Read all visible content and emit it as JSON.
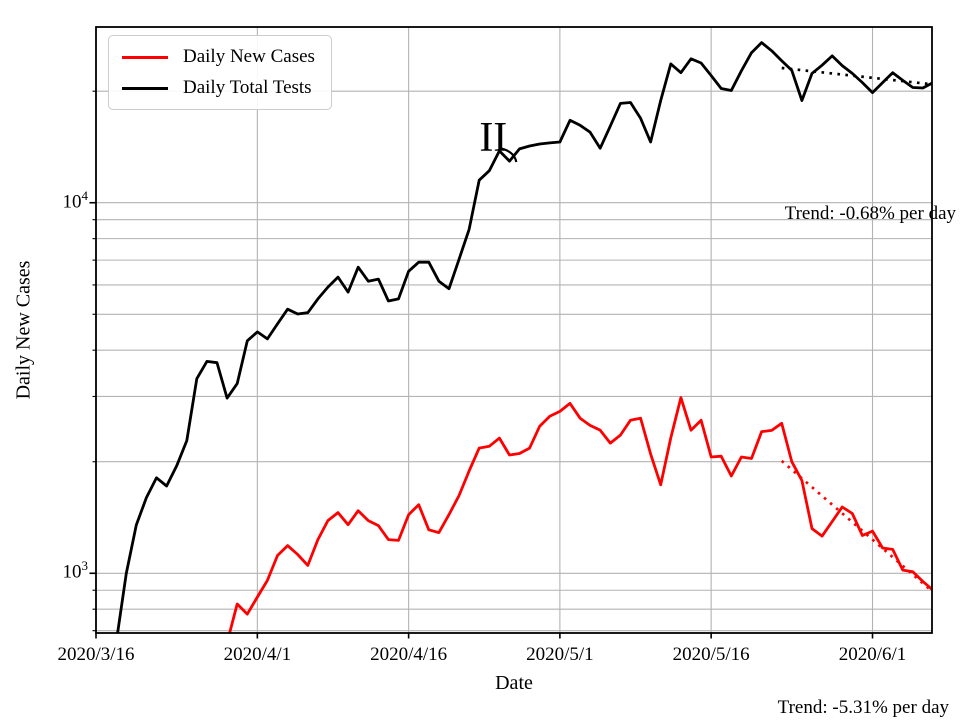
{
  "figure": {
    "background": "#ffffff",
    "grid_color": "#b3b3b3",
    "spine_color": "#000000"
  },
  "chart_data": {
    "type": "line",
    "title": "",
    "xlabel": "Date",
    "ylabel": "Daily New Cases",
    "y_scale": "log",
    "ylim": [
      690,
      29800
    ],
    "xlim_days": [
      0,
      82.9
    ],
    "grid": true,
    "legend_position": "upper left",
    "x_ticks": [
      {
        "label": "2020/3/16",
        "day": 0
      },
      {
        "label": "2020/4/1",
        "day": 16
      },
      {
        "label": "2020/4/16",
        "day": 31
      },
      {
        "label": "2020/5/1",
        "day": 46
      },
      {
        "label": "2020/5/16",
        "day": 61
      },
      {
        "label": "2020/6/1",
        "day": 77
      }
    ],
    "y_ticks": [
      {
        "base": "10",
        "exp": "3",
        "value": 1000
      },
      {
        "base": "10",
        "exp": "4",
        "value": 10000
      }
    ],
    "y_minor_gridlines": [
      700,
      800,
      900,
      2000,
      3000,
      4000,
      5000,
      6000,
      7000,
      8000,
      9000,
      20000
    ],
    "dates": [
      "2020/3/16",
      "2020/3/17",
      "2020/3/18",
      "2020/3/19",
      "2020/3/20",
      "2020/3/21",
      "2020/3/22",
      "2020/3/23",
      "2020/3/24",
      "2020/3/25",
      "2020/3/26",
      "2020/3/27",
      "2020/3/28",
      "2020/3/29",
      "2020/3/30",
      "2020/3/31",
      "2020/4/1",
      "2020/4/2",
      "2020/4/3",
      "2020/4/4",
      "2020/4/5",
      "2020/4/6",
      "2020/4/7",
      "2020/4/8",
      "2020/4/9",
      "2020/4/10",
      "2020/4/11",
      "2020/4/12",
      "2020/4/13",
      "2020/4/14",
      "2020/4/15",
      "2020/4/16",
      "2020/4/17",
      "2020/4/18",
      "2020/4/19",
      "2020/4/20",
      "2020/4/21",
      "2020/4/22",
      "2020/4/23",
      "2020/4/24",
      "2020/4/25",
      "2020/4/26",
      "2020/4/27",
      "2020/4/28",
      "2020/4/29",
      "2020/4/30",
      "2020/5/1",
      "2020/5/2",
      "2020/5/3",
      "2020/5/4",
      "2020/5/5",
      "2020/5/6",
      "2020/5/7",
      "2020/5/8",
      "2020/5/9",
      "2020/5/10",
      "2020/5/11",
      "2020/5/12",
      "2020/5/13",
      "2020/5/14",
      "2020/5/15",
      "2020/5/16",
      "2020/5/17",
      "2020/5/18",
      "2020/5/19",
      "2020/5/20",
      "2020/5/21",
      "2020/5/22",
      "2020/5/23",
      "2020/5/24",
      "2020/5/25",
      "2020/5/26",
      "2020/5/27",
      "2020/5/28",
      "2020/5/29",
      "2020/5/30",
      "2020/5/31",
      "2020/6/1",
      "2020/6/2",
      "2020/6/3",
      "2020/6/4",
      "2020/6/5",
      "2020/6/6",
      "2020/6/7"
    ],
    "series": [
      {
        "name": "Daily New Cases",
        "color": "#ff0000",
        "values": [
          null,
          null,
          null,
          null,
          null,
          null,
          null,
          null,
          null,
          null,
          null,
          null,
          null,
          650,
          826,
          776,
          863,
          957,
          1117,
          1188,
          1124,
          1050,
          1233,
          1387,
          1458,
          1352,
          1475,
          1387,
          1345,
          1233,
          1227,
          1439,
          1531,
          1310,
          1288,
          1440,
          1620,
          1888,
          2177,
          2202,
          2316,
          2085,
          2105,
          2177,
          2494,
          2653,
          2734,
          2873,
          2621,
          2507,
          2433,
          2245,
          2360,
          2589,
          2621,
          2100,
          1733,
          2320,
          2980,
          2433,
          2589,
          2060,
          2070,
          1830,
          2060,
          2040,
          2410,
          2430,
          2540,
          2000,
          1780,
          1320,
          1260,
          1380,
          1510,
          1450,
          1265,
          1300,
          1170,
          1160,
          1020,
          1010,
          950,
          900
        ]
      },
      {
        "name": "Daily Total Tests",
        "color": "#000000",
        "values": [
          null,
          null,
          650,
          1000,
          1350,
          1600,
          1810,
          1720,
          1950,
          2280,
          3350,
          3730,
          3700,
          2970,
          3250,
          4240,
          4480,
          4290,
          4710,
          5160,
          5010,
          5050,
          5500,
          5920,
          6300,
          5740,
          6700,
          6140,
          6220,
          5430,
          5500,
          6530,
          6910,
          6910,
          6140,
          5860,
          7030,
          8470,
          11500,
          12200,
          13800,
          12950,
          13970,
          14230,
          14400,
          14500,
          14580,
          16690,
          16180,
          15500,
          14030,
          16100,
          18540,
          18640,
          16900,
          14580,
          18880,
          23700,
          22440,
          24450,
          23830,
          22030,
          20330,
          20090,
          22700,
          25400,
          27040,
          25700,
          24170,
          22750,
          18880,
          22340,
          23500,
          24900,
          23440,
          22340,
          21100,
          19820,
          21100,
          22440,
          21380,
          20460,
          20400,
          21100
        ]
      }
    ],
    "trend_lines": [
      {
        "series": "Daily Total Tests",
        "label": "Trend: -0.68% per day",
        "rate_per_day_pct": -0.68,
        "color": "#000000",
        "start_day": 68,
        "start_value": 23100,
        "end_day": 83,
        "end_value": 20860
      },
      {
        "series": "Daily New Cases",
        "label": "Trend: -5.31% per day",
        "rate_per_day_pct": -5.31,
        "color": "#ff0000",
        "start_day": 68,
        "start_value": 2010,
        "end_day": 83,
        "end_value": 890
      }
    ],
    "annotation": {
      "text": "II",
      "day": 39.4,
      "value": 14760
    }
  }
}
